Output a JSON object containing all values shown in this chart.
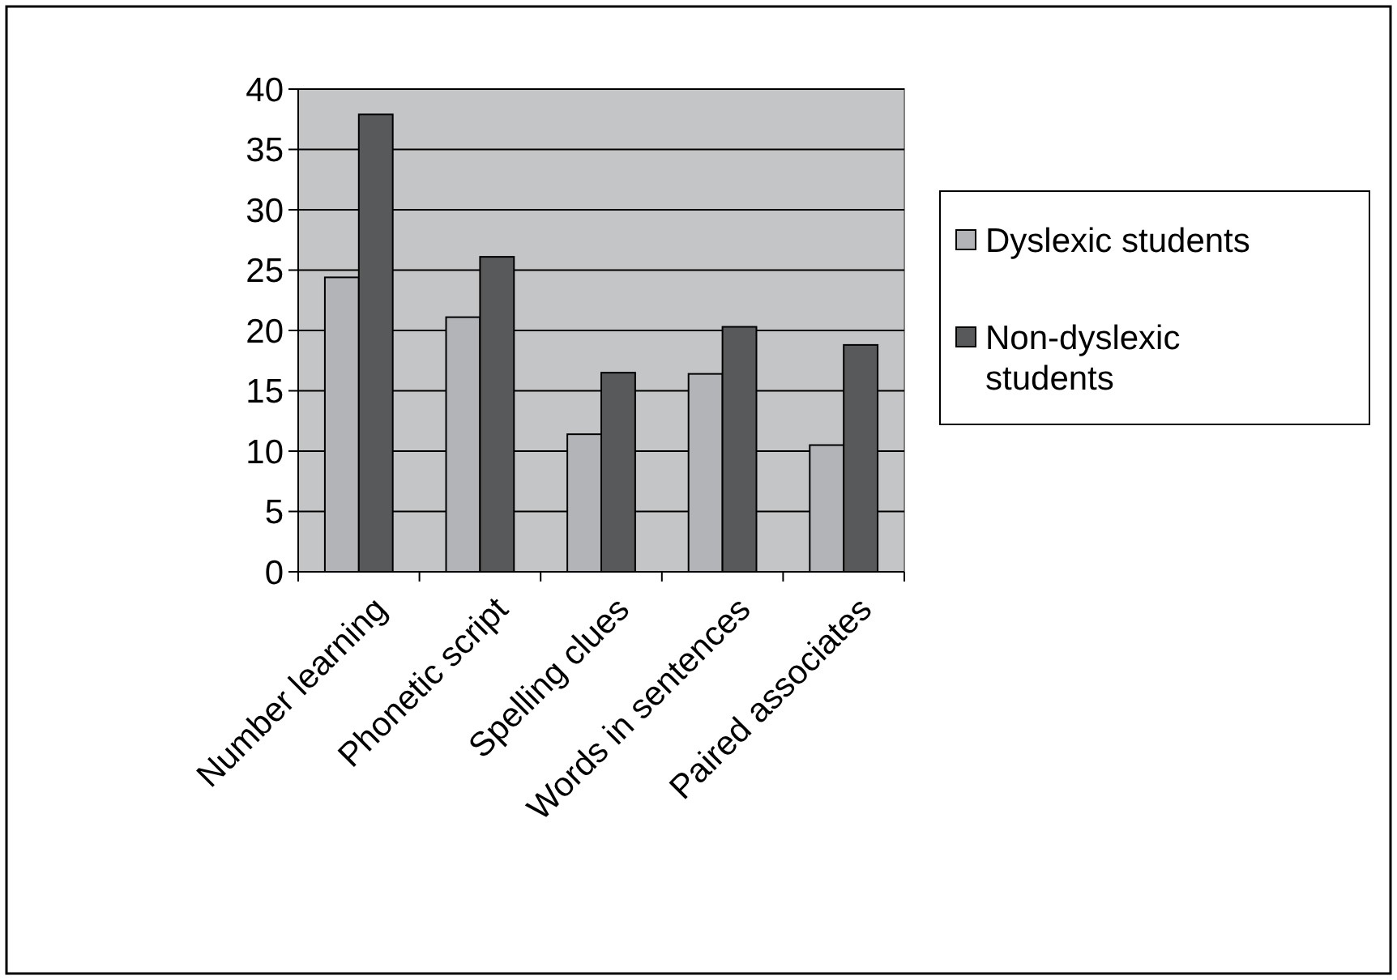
{
  "chart_data": {
    "type": "bar",
    "categories": [
      "Number learning",
      "Phonetic script",
      "Spelling clues",
      "Words in sentences",
      "Paired associates"
    ],
    "series": [
      {
        "name": "Dyslexic students",
        "color": "#b3b4b8",
        "values": [
          24.4,
          21.1,
          11.4,
          16.4,
          10.5
        ]
      },
      {
        "name": "Non-dyslexic students",
        "color": "#58595b",
        "values": [
          37.9,
          26.1,
          16.5,
          20.3,
          18.8
        ]
      }
    ],
    "ylim": [
      0,
      40
    ],
    "yticks": [
      0,
      5,
      10,
      15,
      20,
      25,
      30,
      35,
      40
    ],
    "grid": "y",
    "legend": "right"
  }
}
